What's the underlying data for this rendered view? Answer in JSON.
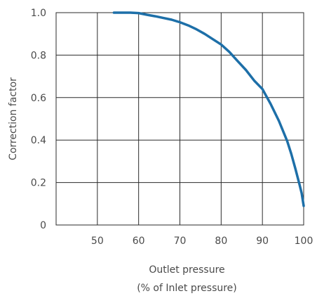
{
  "chart_data": {
    "type": "line",
    "title": "",
    "ylabel": "Correction factor",
    "xlabel_line1": "Outlet pressure",
    "xlabel_line2": "(% of Inlet pressure)",
    "xlim": [
      40,
      100
    ],
    "ylim": [
      0,
      1.0
    ],
    "x_ticks": [
      50,
      60,
      70,
      80,
      90,
      100
    ],
    "x_tick_labels": [
      "50",
      "60",
      "70",
      "80",
      "90",
      "100"
    ],
    "y_ticks": [
      0,
      0.2,
      0.4,
      0.6,
      0.8,
      1.0
    ],
    "y_tick_labels": [
      "0",
      "0.2",
      "0.4",
      "0.6",
      "0.8",
      "1.0"
    ],
    "grid": true,
    "color": "#1d6fa8",
    "series": [
      {
        "x": [
          54,
          56,
          58,
          60,
          62,
          64,
          66,
          68,
          70,
          72,
          74,
          76,
          78,
          80,
          82,
          84,
          86,
          88,
          90,
          92,
          94,
          96,
          97,
          98,
          99,
          99.5,
          100
        ],
        "values": [
          1.0,
          1.0,
          1.0,
          0.998,
          0.99,
          0.983,
          0.975,
          0.967,
          0.955,
          0.94,
          0.922,
          0.9,
          0.875,
          0.85,
          0.815,
          0.772,
          0.73,
          0.68,
          0.64,
          0.57,
          0.49,
          0.395,
          0.335,
          0.265,
          0.19,
          0.15,
          0.09
        ]
      }
    ]
  }
}
